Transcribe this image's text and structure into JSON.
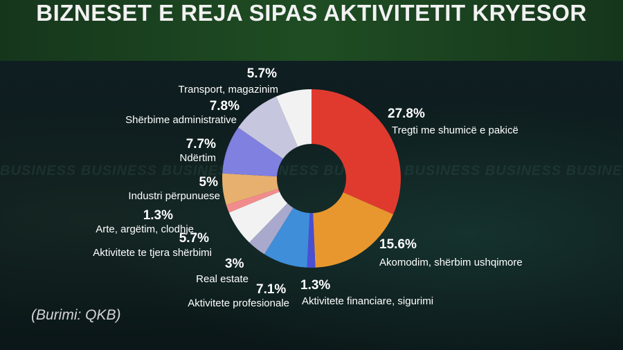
{
  "title": "BIZNESET E REJA SIPAS AKTIVITETIT KRYESOR",
  "source": "(Burimi: QKB)",
  "background_text": "BUSINESS BUSINESS BUSINESS BUSINESS BUSINESS BUSINESS BUSINESS BUSINESS BUSINESS",
  "chart_data": {
    "type": "pie",
    "style": "donut",
    "unit": "%",
    "slices": [
      {
        "label": "Tregti me shumicë e pakicë",
        "value": 27.8,
        "display": "27.8%",
        "color": "#e03a2f"
      },
      {
        "label": "Akomodim, shërbim ushqimore",
        "value": 15.6,
        "display": "15.6%",
        "color": "#e8972f"
      },
      {
        "label": "Aktivitete financiare, sigurimi",
        "value": 1.3,
        "display": "1.3%",
        "color": "#4a4fd4"
      },
      {
        "label": "Aktivitete profesionale",
        "value": 7.1,
        "display": "7.1%",
        "color": "#3f8ed9"
      },
      {
        "label": "Real estate",
        "value": 3,
        "display": "3%",
        "color": "#a9a9cd"
      },
      {
        "label": "Aktivitete te tjera shërbimi",
        "value": 5.7,
        "display": "5.7%",
        "color": "#f2f2f2"
      },
      {
        "label": "Arte, argëtim, clodhje",
        "value": 1.3,
        "display": "1.3%",
        "color": "#f28c8c"
      },
      {
        "label": "Industri përpunuese",
        "value": 5,
        "display": "5%",
        "color": "#e8b06e"
      },
      {
        "label": "Ndërtim",
        "value": 7.7,
        "display": "7.7%",
        "color": "#7f80e0"
      },
      {
        "label": "Shërbime administrative",
        "value": 7.8,
        "display": "7.8%",
        "color": "#c6c6de"
      },
      {
        "label": "Transport, magazinim",
        "value": 5.7,
        "display": "5.7%",
        "color": "#f2f2f2"
      }
    ]
  }
}
